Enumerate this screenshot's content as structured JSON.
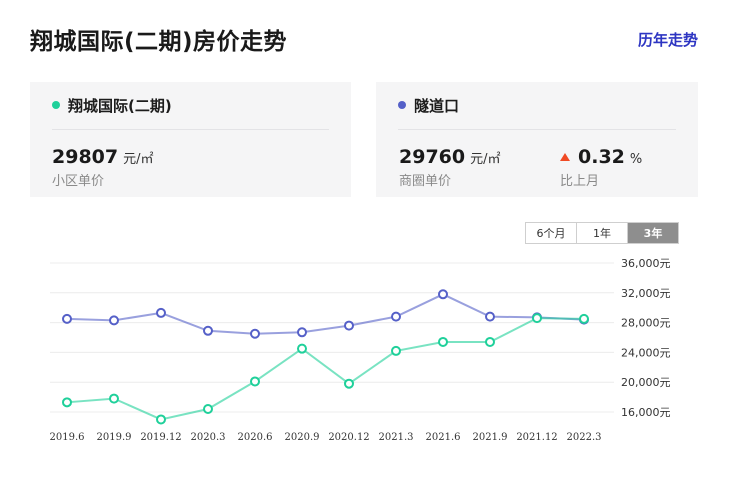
{
  "page": {
    "title": "翔城国际(二期)房价走势",
    "history_link": "历年走势"
  },
  "cards": {
    "community": {
      "name": "翔城国际(二期)",
      "dot_color": "#1fd09a",
      "price": "29807",
      "unit": "元/㎡",
      "caption": "小区单价"
    },
    "district": {
      "name": "隧道口",
      "dot_color": "#5560c8",
      "price": "29760",
      "unit": "元/㎡",
      "caption": "商圈单价",
      "change_value": "0.32",
      "change_unit": "%",
      "change_caption": "比上月",
      "change_direction": "up",
      "change_color": "#f04a24"
    }
  },
  "range_tabs": {
    "items": [
      "6个月",
      "1年",
      "3年"
    ],
    "active": "3年"
  },
  "chart_data": {
    "type": "line",
    "categories": [
      "2019.6",
      "2019.9",
      "2019.12",
      "2020.3",
      "2020.6",
      "2020.9",
      "2020.12",
      "2021.3",
      "2021.6",
      "2021.9",
      "2021.12",
      "2022.3"
    ],
    "y_ticks": [
      "36,000元",
      "32,000元",
      "28,000元",
      "24,000元",
      "20,000元",
      "16,000元"
    ],
    "ylim": [
      16000,
      36000
    ],
    "grid": true,
    "series": [
      {
        "name": "隧道口",
        "color": "#5560c8",
        "values": [
          28500,
          28300,
          29300,
          26900,
          26500,
          26700,
          27600,
          28800,
          31800,
          28800,
          28700,
          28400
        ]
      },
      {
        "name": "翔城国际(二期)",
        "color": "#1fd09a",
        "values": [
          17300,
          17800,
          15000,
          16400,
          20100,
          24500,
          19800,
          24200,
          25400,
          25400,
          28600,
          28500
        ]
      }
    ]
  }
}
